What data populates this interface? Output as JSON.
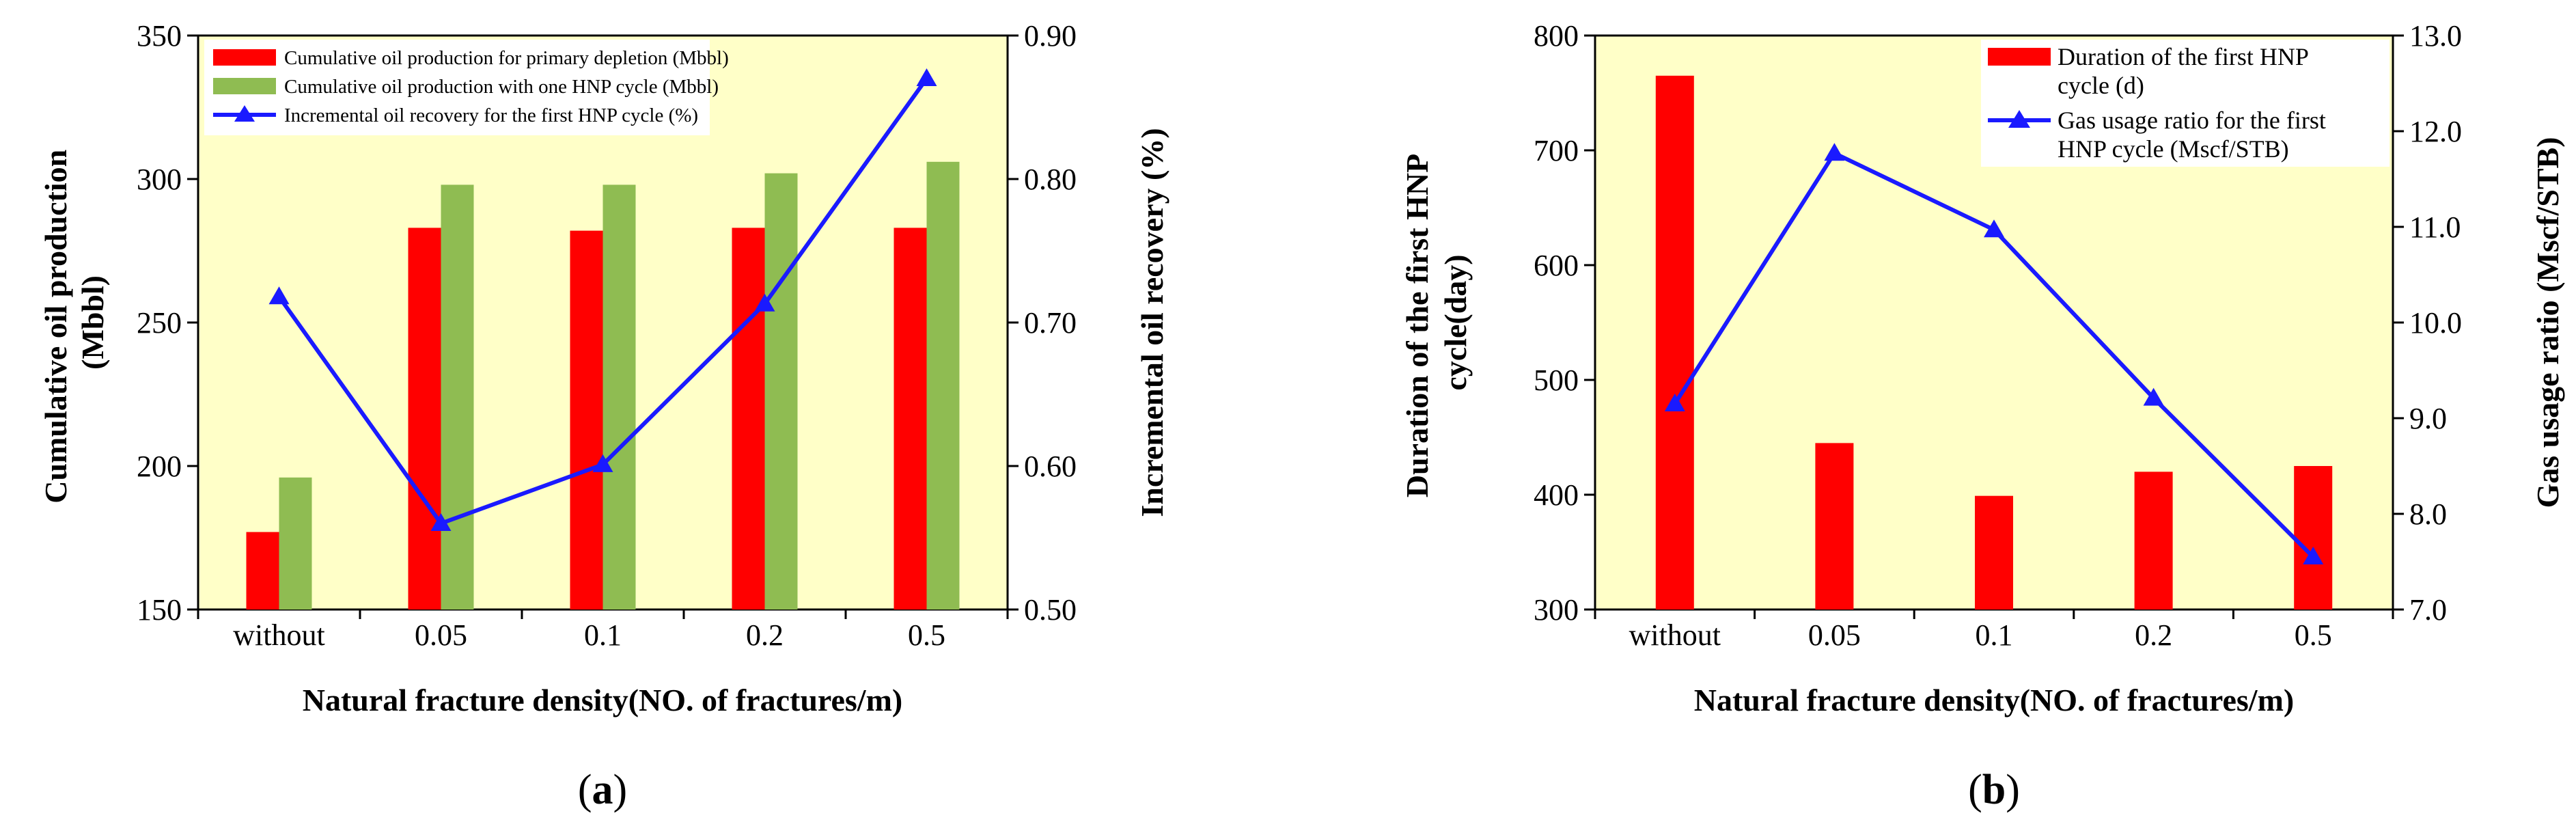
{
  "chart_data": [
    {
      "type": "bar",
      "panel_label": {
        "open": "(",
        "letter": "a",
        "close": ")"
      },
      "title": "",
      "categories": [
        "without",
        "0.05",
        "0.1",
        "0.2",
        "0.5"
      ],
      "xlabel": "Natural fracture density(NO. of fractures/m)",
      "ylabel": {
        "line1": "Cumulative oil production",
        "line2": "(Mbbl)"
      },
      "ylabel_right": "Incremental oil recovery (%)",
      "ylim": [
        150,
        350
      ],
      "ylim_right": [
        0.5,
        0.9
      ],
      "yticks": [
        "150",
        "200",
        "250",
        "300",
        "350"
      ],
      "yticks_right": [
        "0.50",
        "0.60",
        "0.70",
        "0.80",
        "0.90"
      ],
      "legend_position": "top-left",
      "series": [
        {
          "name": "Cumulative oil production for primary depletion (Mbbl)",
          "type": "bar",
          "axis": "left",
          "color": "#ff0000",
          "values": [
            177,
            283,
            282,
            283,
            283
          ]
        },
        {
          "name": "Cumulative oil production with one HNP cycle (Mbbl)",
          "type": "bar",
          "axis": "left",
          "color": "#8fbc52",
          "values": [
            196,
            298,
            298,
            302,
            306
          ]
        },
        {
          "name": "Incremental oil recovery for the first HNP cycle (%)",
          "type": "line",
          "axis": "right",
          "color": "#1a1aff",
          "values": [
            0.718,
            0.56,
            0.601,
            0.713,
            0.87
          ]
        }
      ]
    },
    {
      "type": "bar",
      "panel_label": {
        "open": "(",
        "letter": "b",
        "close": ")"
      },
      "title": "",
      "categories": [
        "without",
        "0.05",
        "0.1",
        "0.2",
        "0.5"
      ],
      "xlabel": "Natural fracture density(NO. of fractures/m)",
      "ylabel": {
        "line1": "Duration of the first HNP",
        "line2": "cycle(day)"
      },
      "ylabel_right": "Gas usage ratio (Mscf/STB)",
      "ylim": [
        300,
        800
      ],
      "ylim_right": [
        7.0,
        13.0
      ],
      "yticks": [
        "300",
        "400",
        "500",
        "600",
        "700",
        "800"
      ],
      "yticks_right": [
        "7.0",
        "8.0",
        "9.0",
        "10.0",
        "11.0",
        "12.0",
        "13.0"
      ],
      "legend_position": "top-right",
      "series": [
        {
          "name": "Duration of the first HNP cycle (d)",
          "legend_lines": [
            "Duration of the first HNP",
            "cycle (d)"
          ],
          "type": "bar",
          "axis": "left",
          "color": "#ff0000",
          "values": [
            765,
            445,
            399,
            420,
            425
          ]
        },
        {
          "name": "Gas usage ratio for the first HNP cycle (Mscf/STB)",
          "legend_lines": [
            "Gas usage ratio for the first",
            "HNP cycle (Mscf/STB)"
          ],
          "type": "line",
          "axis": "right",
          "color": "#1a1aff",
          "values": [
            9.15,
            11.77,
            10.97,
            9.21,
            7.55
          ]
        }
      ]
    }
  ],
  "colors": {
    "plot_bg": "#ffffc8",
    "axis": "#000000"
  }
}
